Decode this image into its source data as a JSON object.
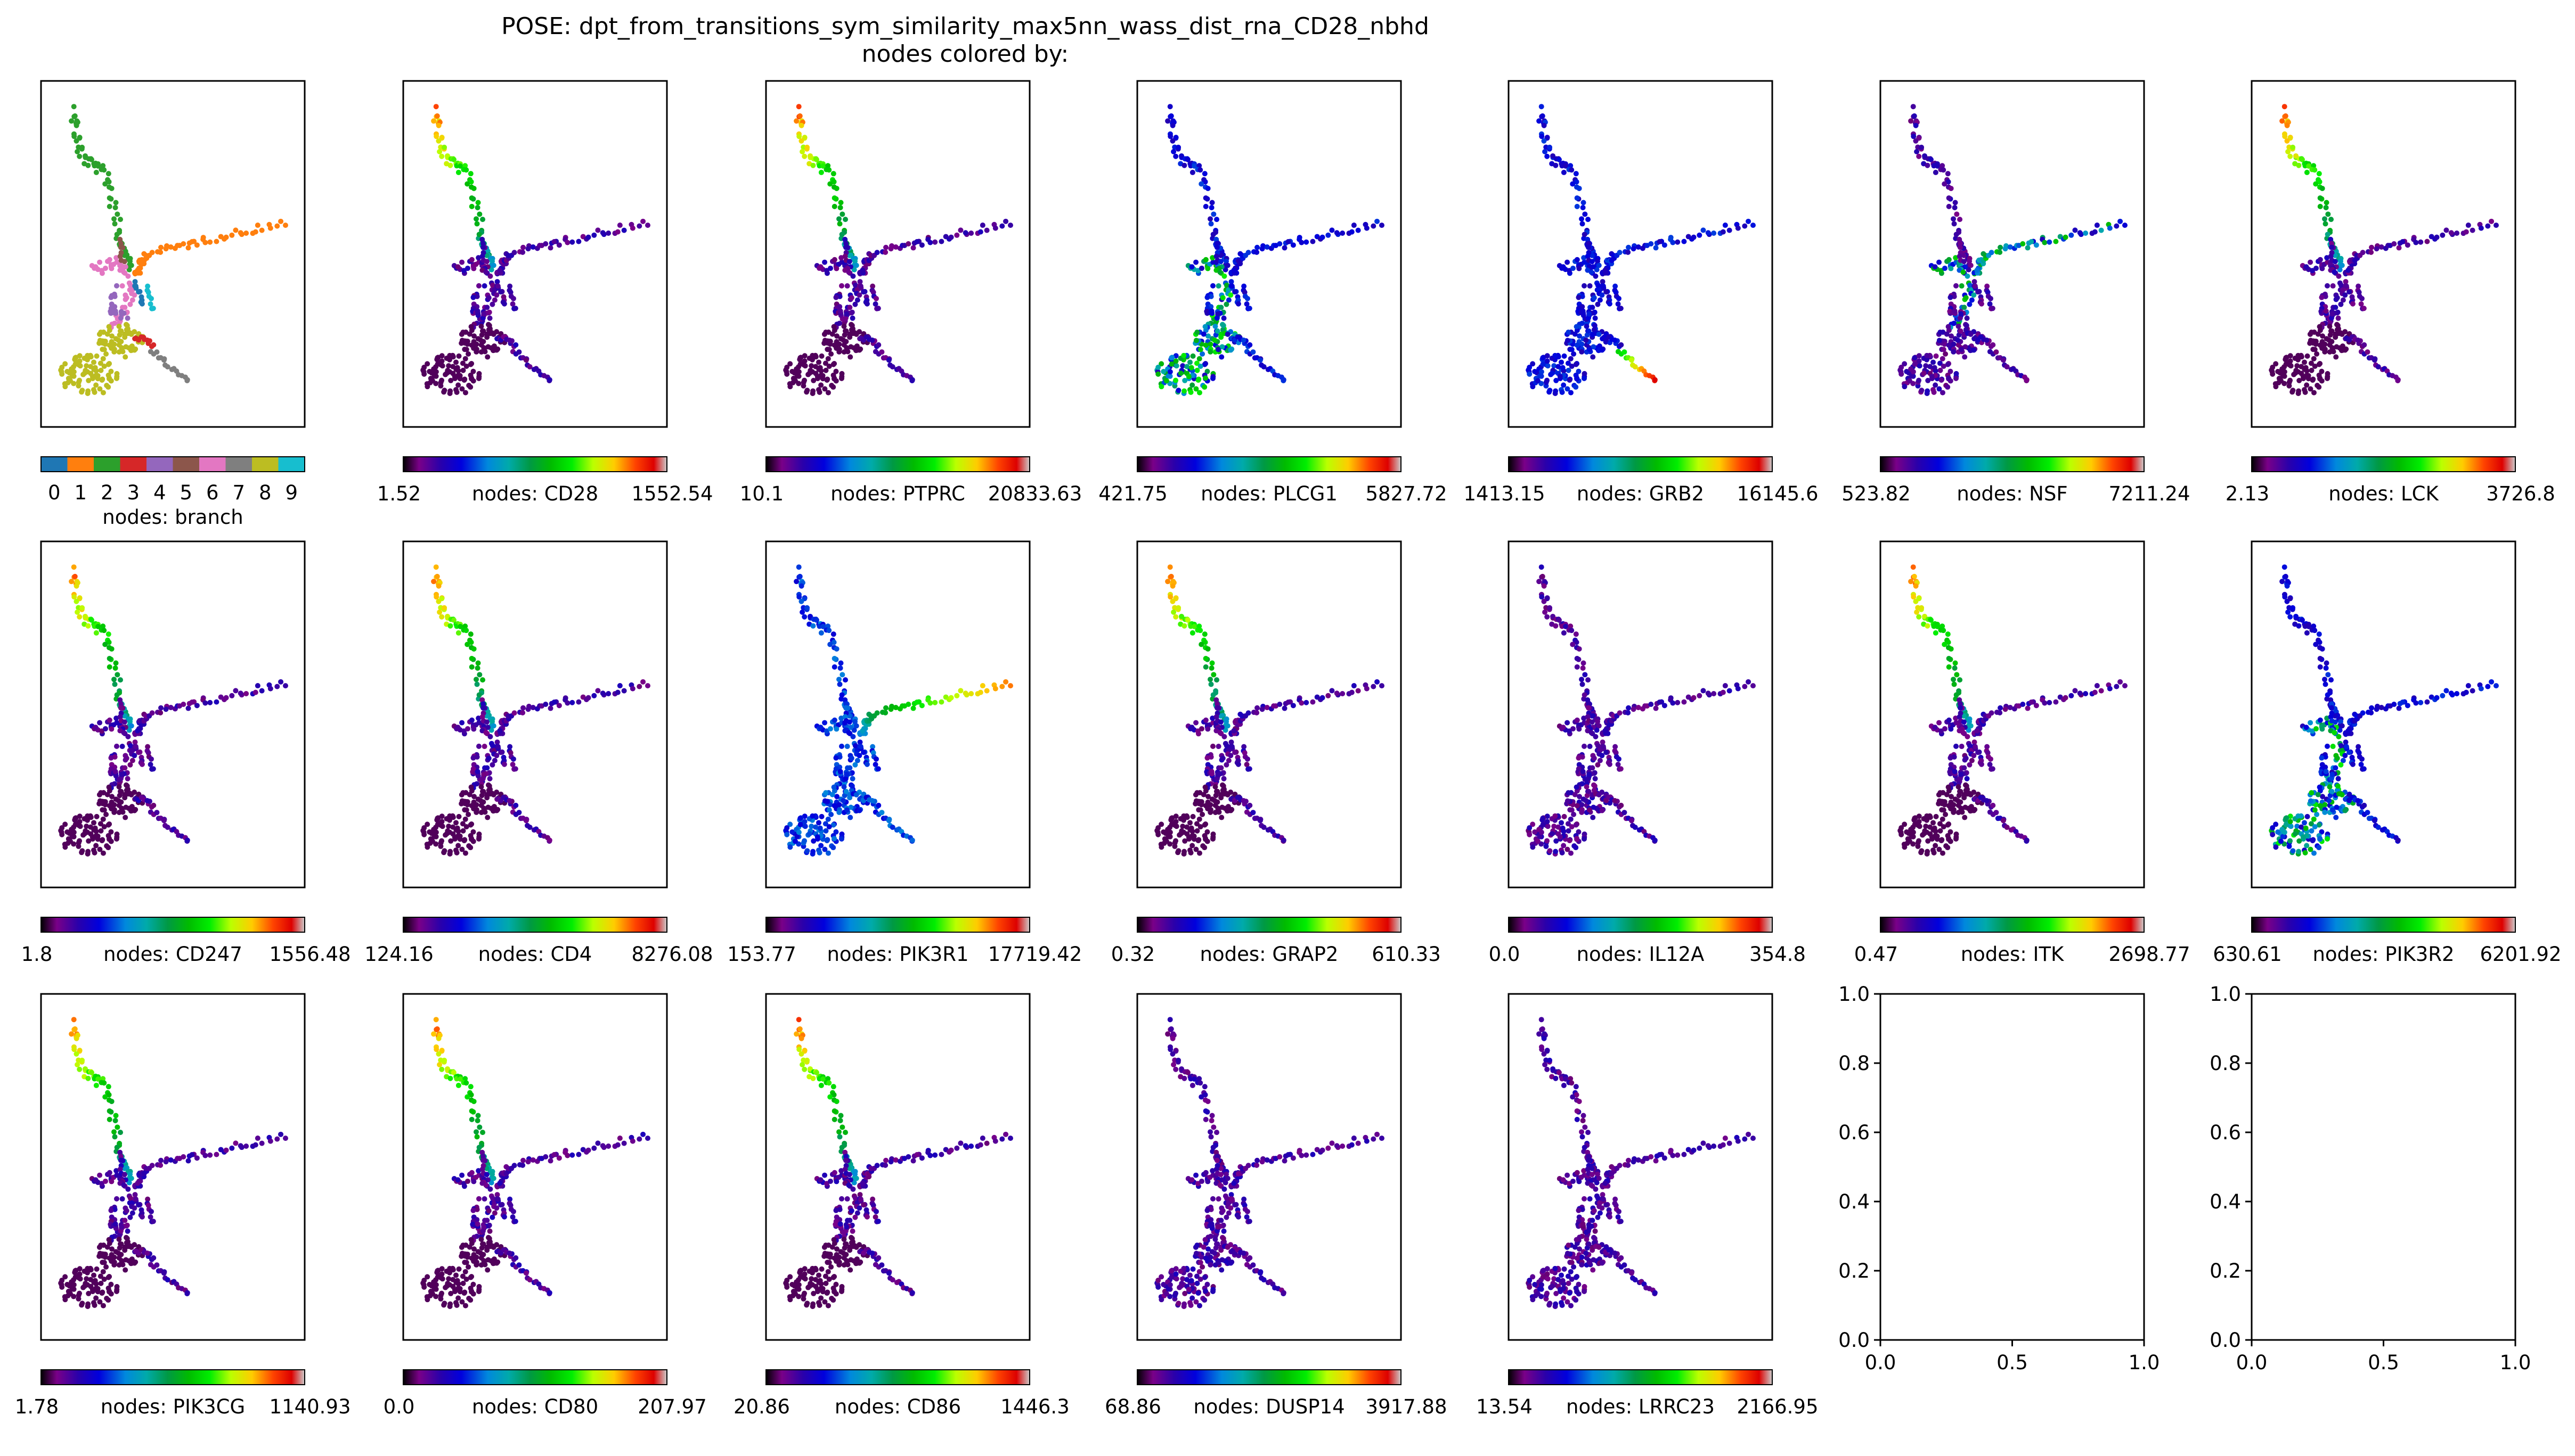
{
  "chart_data": {
    "type": "scatter",
    "title": "POSE: dpt_from_transitions_sym_similarity_max5nn_wass_dist_rna_CD28_nbhd",
    "subtitle": "nodes colored by:",
    "colormap": "nipy_spectral",
    "branch_colors": [
      "#1f77b4",
      "#ff7f0e",
      "#2ca02c",
      "#d62728",
      "#9467bd",
      "#8c564b",
      "#e377c2",
      "#7f7f7f",
      "#bcbd22",
      "#17becf"
    ],
    "panels": [
      {
        "label": "nodes: branch",
        "categorical": true,
        "ticks": [
          "0",
          "1",
          "2",
          "3",
          "4",
          "5",
          "6",
          "7",
          "8",
          "9"
        ]
      },
      {
        "label": "nodes: CD28",
        "min": "1.52",
        "max": "1552.54",
        "hot": "top"
      },
      {
        "label": "nodes: PTPRC",
        "min": "10.1",
        "max": "20833.63",
        "hot": "top"
      },
      {
        "label": "nodes: PLCG1",
        "min": "421.75",
        "max": "5827.72",
        "hot": "lower"
      },
      {
        "label": "nodes: GRB2",
        "min": "1413.15",
        "max": "16145.6",
        "hot": "tail"
      },
      {
        "label": "nodes: NSF",
        "min": "523.82",
        "max": "7211.24",
        "hot": "mid"
      },
      {
        "label": "nodes: LCK",
        "min": "2.13",
        "max": "3726.8",
        "hot": "top"
      },
      {
        "label": "nodes: CD247",
        "min": "1.8",
        "max": "1556.48",
        "hot": "top"
      },
      {
        "label": "nodes: CD4",
        "min": "124.16",
        "max": "8276.08",
        "hot": "top"
      },
      {
        "label": "nodes: PIK3R1",
        "min": "153.77",
        "max": "17719.42",
        "hot": "arm"
      },
      {
        "label": "nodes: GRAP2",
        "min": "0.32",
        "max": "610.33",
        "hot": "top"
      },
      {
        "label": "nodes: IL12A",
        "min": "0.0",
        "max": "354.8",
        "hot": "none"
      },
      {
        "label": "nodes: ITK",
        "min": "0.47",
        "max": "2698.77",
        "hot": "top"
      },
      {
        "label": "nodes: PIK3R2",
        "min": "630.61",
        "max": "6201.92",
        "hot": "lower"
      },
      {
        "label": "nodes: PIK3CG",
        "min": "1.78",
        "max": "1140.93",
        "hot": "top"
      },
      {
        "label": "nodes: CD80",
        "min": "0.0",
        "max": "207.97",
        "hot": "top"
      },
      {
        "label": "nodes: CD86",
        "min": "20.86",
        "max": "1446.3",
        "hot": "top"
      },
      {
        "label": "nodes: DUSP14",
        "min": "68.86",
        "max": "3917.88",
        "hot": "none"
      },
      {
        "label": "nodes: LRRC23",
        "min": "13.54",
        "max": "2166.95",
        "hot": "none"
      }
    ],
    "empty_axes": {
      "count": 2,
      "xlim": [
        0,
        1
      ],
      "ylim": [
        0,
        1
      ],
      "xticks": [
        "0.0",
        "0.5",
        "1.0"
      ],
      "yticks": [
        "0.0",
        "0.2",
        "0.4",
        "0.6",
        "0.8",
        "1.0"
      ]
    }
  }
}
